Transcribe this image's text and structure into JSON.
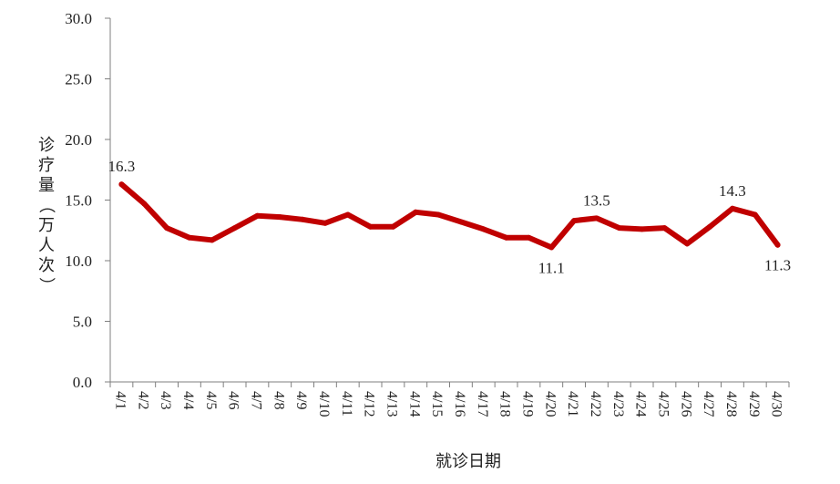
{
  "chart_data": {
    "type": "line",
    "title": "",
    "xlabel": "就诊日期",
    "ylabel": "诊疗量（万人次）",
    "ylim": [
      0,
      30
    ],
    "yticks": [
      "0.0",
      "5.0",
      "10.0",
      "15.0",
      "20.0",
      "25.0",
      "30.0"
    ],
    "categories": [
      "4/1",
      "4/2",
      "4/3",
      "4/4",
      "4/5",
      "4/6",
      "4/7",
      "4/8",
      "4/9",
      "4/10",
      "4/11",
      "4/12",
      "4/13",
      "4/14",
      "4/15",
      "4/16",
      "4/17",
      "4/18",
      "4/19",
      "4/20",
      "4/21",
      "4/22",
      "4/23",
      "4/24",
      "4/25",
      "4/26",
      "4/27",
      "4/28",
      "4/29",
      "4/30"
    ],
    "series": [
      {
        "color": "#c00000",
        "values": [
          16.3,
          14.7,
          12.7,
          11.9,
          11.7,
          12.7,
          13.7,
          13.6,
          13.4,
          13.1,
          13.8,
          12.8,
          12.8,
          14.0,
          13.8,
          13.2,
          12.6,
          11.9,
          11.9,
          11.1,
          13.3,
          13.5,
          12.7,
          12.6,
          12.7,
          11.4,
          12.8,
          14.3,
          13.8,
          11.3
        ]
      }
    ],
    "data_labels": [
      {
        "index": 0,
        "text": "16.3"
      },
      {
        "index": 19,
        "text": "11.1"
      },
      {
        "index": 21,
        "text": "13.5"
      },
      {
        "index": 27,
        "text": "14.3"
      },
      {
        "index": 29,
        "text": "11.3"
      }
    ],
    "grid": false,
    "legend": "none"
  }
}
